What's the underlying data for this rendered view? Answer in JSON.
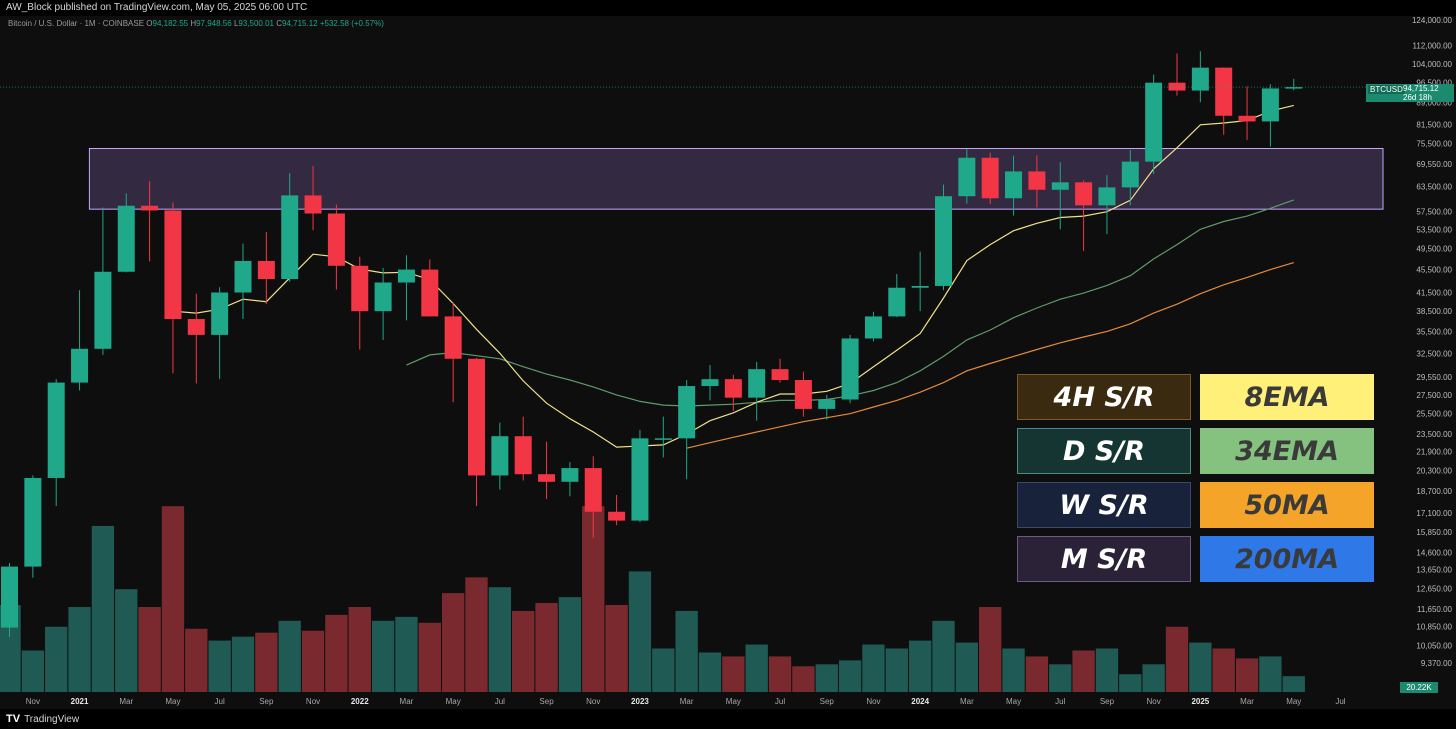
{
  "header": {
    "publisher": "AW_Block published on TradingView.com, May 05, 2025 06:00 UTC",
    "symbol": "Bitcoin / U.S. Dollar · 1M · COINBASE",
    "o_label": "O",
    "o_value": "94,182.55",
    "h_label": "H",
    "h_value": "97,948.56",
    "l_label": "L",
    "l_value": "93,500.01",
    "c_label": "C",
    "c_value": "94,715.12",
    "change": "+532.58 (+0.57%)"
  },
  "footer": {
    "brand": "TradingView",
    "logo_icon": "tradingview-logo-icon"
  },
  "price_tag": {
    "symbol": "BTCUSD",
    "price": "94,715.12",
    "countdown": "26d 18h"
  },
  "volume_tag": "20.22K",
  "legend": [
    {
      "label": "4H S/R",
      "bg": "#3a2a10",
      "border": "#7a5a2a",
      "color": "#ffffff"
    },
    {
      "label": "8EMA",
      "bg": "#fff079",
      "border": "#fff079",
      "color": "#3a3a3a"
    },
    {
      "label": "D S/R",
      "bg": "#143532",
      "border": "#4f8a82",
      "color": "#ffffff"
    },
    {
      "label": "34EMA",
      "bg": "#86c27f",
      "border": "#86c27f",
      "color": "#3a3a3a"
    },
    {
      "label": "W S/R",
      "bg": "#18223a",
      "border": "#3a4a6a",
      "color": "#ffffff"
    },
    {
      "label": "50MA",
      "bg": "#f5a42a",
      "border": "#f5a42a",
      "color": "#3a3a3a"
    },
    {
      "label": "M S/R",
      "bg": "#2c2238",
      "border": "#6a5a80",
      "color": "#ffffff"
    },
    {
      "label": "200MA",
      "bg": "#2f78e8",
      "border": "#2f78e8",
      "color": "#3a3a3a"
    }
  ],
  "colors": {
    "up": "#1fa88a",
    "down": "#f23645",
    "vol_up": "#1f5a54",
    "vol_down": "#7a2a2e",
    "ema8": "#f0e08a",
    "ema34": "#5f9a6a",
    "ma50": "#e58a3a",
    "zone_fill": "#3a2e4a",
    "zone_border": "#c8a8ff"
  },
  "chart_data": {
    "type": "candlestick",
    "scale": "log",
    "ylim": [
      9000,
      124000
    ],
    "y_ticks": [
      "124,000.00",
      "112,000.00",
      "104,000.00",
      "96,500.00",
      "89,000.00",
      "81,500.00",
      "75,500.00",
      "69,550.00",
      "63,500.00",
      "57,500.00",
      "53,500.00",
      "49,500.00",
      "45,500.00",
      "41,500.00",
      "38,500.00",
      "35,500.00",
      "32,500.00",
      "29,550.00",
      "27,500.00",
      "25,500.00",
      "23,500.00",
      "21,900.00",
      "20,300.00",
      "18,700.00",
      "17,100.00",
      "15,850.00",
      "14,600.00",
      "13,650.00",
      "12,650.00",
      "11,650.00",
      "10,850.00",
      "10,050.00",
      "9,370.00"
    ],
    "x_ticks": [
      "Nov",
      "2021",
      "Mar",
      "May",
      "Jul",
      "Sep",
      "Nov",
      "2022",
      "Mar",
      "May",
      "Jul",
      "Sep",
      "Nov",
      "2023",
      "Mar",
      "May",
      "Jul",
      "Sep",
      "Nov",
      "2024",
      "Mar",
      "May",
      "Jul",
      "Sep",
      "Nov",
      "2025",
      "Mar",
      "May",
      "Jul"
    ],
    "x_tick_bold": [
      "2021",
      "2022",
      "2023",
      "2024",
      "2025"
    ],
    "months": [
      "2020-10",
      "2020-11",
      "2020-12",
      "2021-01",
      "2021-02",
      "2021-03",
      "2021-04",
      "2021-05",
      "2021-06",
      "2021-07",
      "2021-08",
      "2021-09",
      "2021-10",
      "2021-11",
      "2021-12",
      "2022-01",
      "2022-02",
      "2022-03",
      "2022-04",
      "2022-05",
      "2022-06",
      "2022-07",
      "2022-08",
      "2022-09",
      "2022-10",
      "2022-11",
      "2022-12",
      "2023-01",
      "2023-02",
      "2023-03",
      "2023-04",
      "2023-05",
      "2023-06",
      "2023-07",
      "2023-08",
      "2023-09",
      "2023-10",
      "2023-11",
      "2023-12",
      "2024-01",
      "2024-02",
      "2024-03",
      "2024-04",
      "2024-05",
      "2024-06",
      "2024-07",
      "2024-08",
      "2024-09",
      "2024-10",
      "2024-11",
      "2024-12",
      "2025-01",
      "2025-02",
      "2025-03",
      "2025-04",
      "2025-05"
    ],
    "ohlc": [
      [
        10800,
        14000,
        10400,
        13800
      ],
      [
        13800,
        19900,
        13200,
        19700
      ],
      [
        19700,
        29300,
        17600,
        28900
      ],
      [
        28900,
        41900,
        28000,
        33100
      ],
      [
        33100,
        58400,
        32300,
        45100
      ],
      [
        45100,
        61800,
        45000,
        58800
      ],
      [
        58800,
        64900,
        47000,
        57700
      ],
      [
        57700,
        59600,
        30000,
        37300
      ],
      [
        37300,
        41300,
        28800,
        35000
      ],
      [
        35000,
        42400,
        29300,
        41500
      ],
      [
        41500,
        50500,
        37300,
        47100
      ],
      [
        47100,
        52900,
        39600,
        43800
      ],
      [
        43800,
        67000,
        43300,
        61300
      ],
      [
        61300,
        69000,
        53300,
        57000
      ],
      [
        57000,
        59100,
        42000,
        46200
      ],
      [
        46200,
        47900,
        33000,
        38500
      ],
      [
        38500,
        45800,
        34300,
        43200
      ],
      [
        43200,
        48200,
        37100,
        45500
      ],
      [
        45500,
        47400,
        37700,
        37700
      ],
      [
        37700,
        39900,
        26700,
        31800
      ],
      [
        31800,
        31900,
        17600,
        19900
      ],
      [
        19900,
        24600,
        18800,
        23300
      ],
      [
        23300,
        25200,
        19500,
        20000
      ],
      [
        20000,
        22800,
        18100,
        19400
      ],
      [
        19400,
        21000,
        18300,
        20500
      ],
      [
        20500,
        21500,
        15500,
        17200
      ],
      [
        17200,
        18400,
        16300,
        16600
      ],
      [
        16600,
        23900,
        16500,
        23100
      ],
      [
        23100,
        25200,
        21400,
        23100
      ],
      [
        23100,
        29200,
        19600,
        28500
      ],
      [
        28500,
        31000,
        26900,
        29300
      ],
      [
        29300,
        29800,
        25800,
        27200
      ],
      [
        27200,
        31400,
        24800,
        30500
      ],
      [
        30500,
        31800,
        28900,
        29200
      ],
      [
        29200,
        30200,
        25200,
        26000
      ],
      [
        26000,
        27500,
        24900,
        27000
      ],
      [
        27000,
        35000,
        26600,
        34500
      ],
      [
        34500,
        38400,
        34100,
        37700
      ],
      [
        37700,
        44700,
        37600,
        42300
      ],
      [
        42300,
        48900,
        38500,
        42600
      ],
      [
        42600,
        64000,
        41900,
        61100
      ],
      [
        61100,
        73800,
        59300,
        71300
      ],
      [
        71300,
        72800,
        59200,
        60600
      ],
      [
        60600,
        71900,
        56500,
        67500
      ],
      [
        67500,
        72000,
        58400,
        62700
      ],
      [
        62700,
        70000,
        53500,
        64600
      ],
      [
        64600,
        65100,
        49000,
        58900
      ],
      [
        58900,
        66500,
        52500,
        63300
      ],
      [
        63300,
        73600,
        58900,
        70200
      ],
      [
        70200,
        99600,
        66800,
        96400
      ],
      [
        96400,
        108400,
        91500,
        93400
      ],
      [
        93400,
        109400,
        89100,
        102400
      ],
      [
        102400,
        102500,
        78200,
        84400
      ],
      [
        84400,
        95000,
        76600,
        82500
      ],
      [
        82500,
        95800,
        74600,
        94200
      ],
      [
        94200,
        97900,
        93500,
        94700
      ]
    ],
    "volume_units": "K",
    "volume": [
      13.2,
      10.9,
      12.1,
      13.1,
      17.2,
      14.0,
      13.1,
      18.2,
      12.0,
      11.4,
      11.6,
      11.8,
      12.4,
      11.9,
      12.7,
      13.1,
      12.4,
      12.6,
      12.3,
      13.8,
      14.6,
      14.1,
      12.9,
      13.3,
      13.6,
      18.2,
      13.2,
      14.9,
      11.0,
      12.9,
      10.8,
      10.6,
      11.2,
      10.6,
      10.1,
      10.2,
      10.4,
      11.2,
      11.0,
      11.4,
      12.4,
      11.3,
      13.1,
      11.0,
      10.6,
      10.2,
      10.9,
      11.0,
      9.7,
      10.2,
      12.1,
      11.3,
      11.0,
      10.5,
      10.6,
      9.6
    ],
    "ema8": [
      null,
      null,
      null,
      null,
      null,
      null,
      null,
      38500,
      38200,
      38800,
      40400,
      40000,
      44000,
      48400,
      47900,
      45600,
      44900,
      45000,
      43700,
      39700,
      35800,
      32500,
      29100,
      26600,
      25000,
      23700,
      22300,
      22400,
      22500,
      23500,
      24800,
      25600,
      26700,
      27600,
      27600,
      27900,
      28800,
      30800,
      32900,
      35200,
      40600,
      47200,
      50300,
      53200,
      54800,
      56100,
      56400,
      57400,
      60100,
      68200,
      74200,
      81400,
      82000,
      82800,
      86000,
      88000
    ],
    "ema34": [
      null,
      null,
      null,
      null,
      null,
      null,
      null,
      null,
      null,
      null,
      null,
      null,
      null,
      null,
      null,
      null,
      null,
      31000,
      32300,
      32600,
      32200,
      31800,
      30800,
      29900,
      29200,
      28400,
      27500,
      26800,
      26400,
      26300,
      26400,
      26500,
      26700,
      26900,
      26900,
      27000,
      27400,
      28000,
      28900,
      30300,
      32100,
      34300,
      35700,
      37500,
      39000,
      40400,
      41400,
      42700,
      44400,
      47500,
      50300,
      53500,
      55200,
      56400,
      58200,
      60200
    ],
    "ma50": [
      null,
      null,
      null,
      null,
      null,
      null,
      null,
      null,
      null,
      null,
      null,
      null,
      null,
      null,
      null,
      null,
      null,
      null,
      null,
      null,
      null,
      null,
      null,
      null,
      null,
      null,
      null,
      null,
      null,
      22200,
      22700,
      23200,
      23700,
      24200,
      24700,
      25100,
      25500,
      26200,
      26900,
      27800,
      28900,
      30300,
      31200,
      32100,
      33000,
      33900,
      34700,
      35500,
      36600,
      38200,
      39600,
      41300,
      42800,
      44100,
      45500,
      46800
    ],
    "zone": {
      "low": 58000,
      "high": 74000,
      "from": "2021-02",
      "to": "2025-06"
    }
  }
}
